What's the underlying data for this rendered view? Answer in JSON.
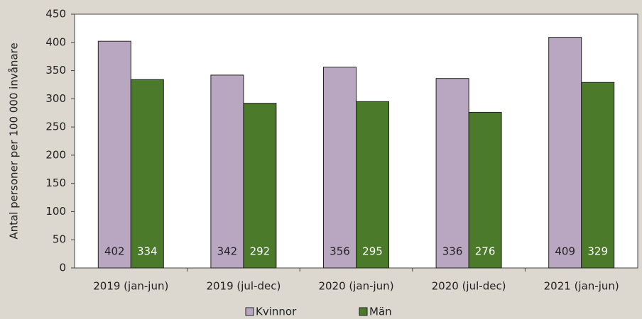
{
  "chart_data": {
    "type": "bar",
    "y_label": "Antal personer per 100 000 invånare",
    "categories": [
      "2019 (jan-jun)",
      "2019 (jul-dec)",
      "2020 (jan-jun)",
      "2020 (jul-dec)",
      "2021 (jan-jun)"
    ],
    "series": [
      {
        "name": "Kvinnor",
        "color": "#b9a7c2",
        "label_color": "#222222",
        "values": [
          402,
          342,
          356,
          336,
          409
        ]
      },
      {
        "name": "Män",
        "color": "#4b7a2a",
        "label_color": "#ffffff",
        "values": [
          334,
          292,
          295,
          276,
          329
        ]
      }
    ],
    "ylim": [
      0,
      450
    ],
    "yticks": [
      0,
      50,
      100,
      150,
      200,
      250,
      300,
      350,
      400,
      450
    ],
    "data_labels": true,
    "legend": "bottom"
  }
}
